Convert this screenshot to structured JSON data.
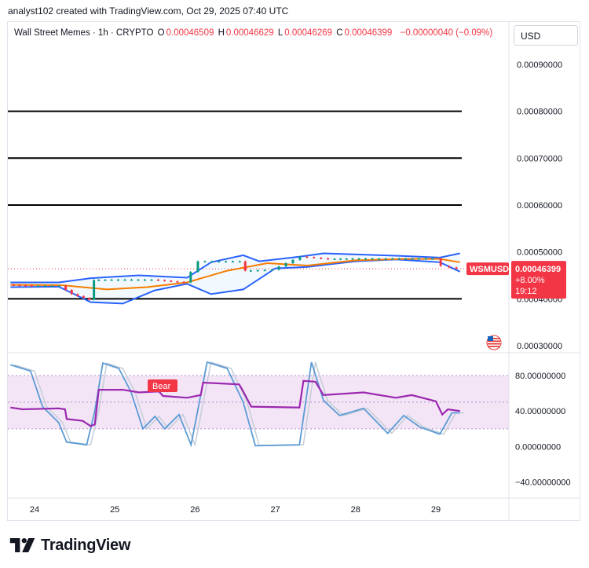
{
  "header": {
    "attribution": "analyst102 created with TradingView.com, Oct 29, 2025 07:40 UTC"
  },
  "legend": {
    "symbol": "Wall Street Memes · 1h · CRYPTO",
    "open_label": "O",
    "open": "0.00046509",
    "high_label": "H",
    "high": "0.00046629",
    "low_label": "L",
    "low": "0.00046269",
    "close_label": "C",
    "close": "0.00046399",
    "change": "−0.00000040 (−0.09%)"
  },
  "currency_button": "USD",
  "price_axis": {
    "ticks": [
      "0.00090000",
      "0.00080000",
      "0.00070000",
      "0.00060000",
      "0.00050000",
      "0.00030000"
    ],
    "partial_tick": "0.00040000"
  },
  "badges": {
    "symbol": "WSMUSD",
    "price": "0.00046399",
    "change": "+8.00%",
    "countdown": "19:12",
    "bear": "Bear"
  },
  "oscillator_axis": {
    "ticks": [
      "80.00000000",
      "40.00000000",
      "0.00000000",
      "−40.00000000"
    ]
  },
  "time_axis": {
    "ticks": [
      "24",
      "25",
      "26",
      "27",
      "28",
      "29"
    ]
  },
  "footer": {
    "brand": "TradingView"
  },
  "colors": {
    "bollinger": "#2962ff",
    "basis": "#f57c00",
    "up": "#089981",
    "down": "#f23645",
    "stoch_k": "#5b9bd5",
    "rsi": "#9c27b0",
    "band_fill": "#f3e5f5"
  },
  "chart_data": [
    {
      "type": "candlestick",
      "symbol": "WSMUSD",
      "timeframe": "1h",
      "y_range": [
        0.00027,
        0.00094
      ],
      "horizontal_levels": [
        0.0008,
        0.0007,
        0.0006,
        0.0004
      ],
      "last_price": 0.00046399,
      "x_labels": [
        "24",
        "25",
        "26",
        "27",
        "28",
        "29"
      ],
      "close_series": [
        {
          "x": 23.7,
          "y": 0.00043
        },
        {
          "x": 24.0,
          "y": 0.000428
        },
        {
          "x": 24.35,
          "y": 0.000428
        },
        {
          "x": 24.5,
          "y": 0.00041
        },
        {
          "x": 24.72,
          "y": 0.000398
        },
        {
          "x": 24.76,
          "y": 0.00044
        },
        {
          "x": 25.0,
          "y": 0.000441
        },
        {
          "x": 25.5,
          "y": 0.000441
        },
        {
          "x": 25.9,
          "y": 0.000435
        },
        {
          "x": 26.08,
          "y": 0.00048
        },
        {
          "x": 26.6,
          "y": 0.00048
        },
        {
          "x": 26.65,
          "y": 0.00046
        },
        {
          "x": 27.0,
          "y": 0.000462
        },
        {
          "x": 27.35,
          "y": 0.00049
        },
        {
          "x": 27.7,
          "y": 0.000485
        },
        {
          "x": 28.0,
          "y": 0.000486
        },
        {
          "x": 28.5,
          "y": 0.000486
        },
        {
          "x": 29.0,
          "y": 0.000486
        },
        {
          "x": 29.12,
          "y": 0.00047
        },
        {
          "x": 29.3,
          "y": 0.000464
        }
      ],
      "bollinger_upper": [
        {
          "x": 23.7,
          "y": 0.000435
        },
        {
          "x": 24.3,
          "y": 0.000435
        },
        {
          "x": 24.7,
          "y": 0.000444
        },
        {
          "x": 25.3,
          "y": 0.00045
        },
        {
          "x": 25.9,
          "y": 0.000445
        },
        {
          "x": 26.2,
          "y": 0.000478
        },
        {
          "x": 26.6,
          "y": 0.000493
        },
        {
          "x": 26.8,
          "y": 0.00048
        },
        {
          "x": 27.3,
          "y": 0.00049
        },
        {
          "x": 27.6,
          "y": 0.000497
        },
        {
          "x": 28.5,
          "y": 0.000492
        },
        {
          "x": 29.05,
          "y": 0.000488
        },
        {
          "x": 29.3,
          "y": 0.000497
        }
      ],
      "bollinger_basis": [
        {
          "x": 23.7,
          "y": 0.00043
        },
        {
          "x": 24.35,
          "y": 0.000429
        },
        {
          "x": 24.9,
          "y": 0.00042
        },
        {
          "x": 25.4,
          "y": 0.000425
        },
        {
          "x": 25.9,
          "y": 0.000435
        },
        {
          "x": 26.4,
          "y": 0.00046
        },
        {
          "x": 26.9,
          "y": 0.000476
        },
        {
          "x": 27.4,
          "y": 0.000471
        },
        {
          "x": 28.0,
          "y": 0.000482
        },
        {
          "x": 28.6,
          "y": 0.000485
        },
        {
          "x": 29.05,
          "y": 0.000485
        },
        {
          "x": 29.3,
          "y": 0.000478
        }
      ],
      "bollinger_lower": [
        {
          "x": 23.7,
          "y": 0.000425
        },
        {
          "x": 24.3,
          "y": 0.000426
        },
        {
          "x": 24.7,
          "y": 0.000393
        },
        {
          "x": 25.1,
          "y": 0.00039
        },
        {
          "x": 25.5,
          "y": 0.000418
        },
        {
          "x": 25.9,
          "y": 0.000432
        },
        {
          "x": 26.2,
          "y": 0.00041
        },
        {
          "x": 26.6,
          "y": 0.00042
        },
        {
          "x": 27.0,
          "y": 0.000465
        },
        {
          "x": 27.4,
          "y": 0.000468
        },
        {
          "x": 28.0,
          "y": 0.00048
        },
        {
          "x": 28.5,
          "y": 0.000484
        },
        {
          "x": 29.05,
          "y": 0.000478
        },
        {
          "x": 29.3,
          "y": 0.000458
        }
      ]
    },
    {
      "type": "line",
      "name": "oscillator",
      "y_range": [
        -58,
        103
      ],
      "band": [
        20,
        80
      ],
      "midline": 50,
      "x_labels": [
        "24",
        "25",
        "26",
        "27",
        "28",
        "29"
      ],
      "series": [
        {
          "name": "rsi",
          "values": [
            {
              "x": 23.7,
              "y": 44
            },
            {
              "x": 23.85,
              "y": 42
            },
            {
              "x": 24.3,
              "y": 43
            },
            {
              "x": 24.38,
              "y": 42
            },
            {
              "x": 24.4,
              "y": 31
            },
            {
              "x": 24.6,
              "y": 29
            },
            {
              "x": 24.7,
              "y": 23
            },
            {
              "x": 24.75,
              "y": 25
            },
            {
              "x": 24.8,
              "y": 64
            },
            {
              "x": 25.1,
              "y": 64
            },
            {
              "x": 25.3,
              "y": 61
            },
            {
              "x": 25.55,
              "y": 62
            },
            {
              "x": 25.6,
              "y": 57
            },
            {
              "x": 25.9,
              "y": 55
            },
            {
              "x": 26.07,
              "y": 58
            },
            {
              "x": 26.1,
              "y": 72
            },
            {
              "x": 26.55,
              "y": 70
            },
            {
              "x": 26.6,
              "y": 62
            },
            {
              "x": 26.7,
              "y": 45
            },
            {
              "x": 27.3,
              "y": 44
            },
            {
              "x": 27.35,
              "y": 74
            },
            {
              "x": 27.5,
              "y": 73
            },
            {
              "x": 27.6,
              "y": 58
            },
            {
              "x": 28.1,
              "y": 61
            },
            {
              "x": 28.5,
              "y": 55
            },
            {
              "x": 28.7,
              "y": 58
            },
            {
              "x": 29.0,
              "y": 51
            },
            {
              "x": 29.08,
              "y": 36
            },
            {
              "x": 29.15,
              "y": 42
            },
            {
              "x": 29.3,
              "y": 40
            }
          ]
        },
        {
          "name": "stochastic",
          "values": [
            {
              "x": 23.7,
              "y": 92
            },
            {
              "x": 23.95,
              "y": 85
            },
            {
              "x": 24.1,
              "y": 45
            },
            {
              "x": 24.3,
              "y": 27
            },
            {
              "x": 24.4,
              "y": 5
            },
            {
              "x": 24.65,
              "y": 2
            },
            {
              "x": 24.75,
              "y": 40
            },
            {
              "x": 24.85,
              "y": 94
            },
            {
              "x": 25.05,
              "y": 88
            },
            {
              "x": 25.2,
              "y": 62
            },
            {
              "x": 25.35,
              "y": 20
            },
            {
              "x": 25.5,
              "y": 34
            },
            {
              "x": 25.62,
              "y": 20
            },
            {
              "x": 25.8,
              "y": 36
            },
            {
              "x": 25.95,
              "y": 2
            },
            {
              "x": 26.15,
              "y": 95
            },
            {
              "x": 26.4,
              "y": 88
            },
            {
              "x": 26.6,
              "y": 50
            },
            {
              "x": 26.75,
              "y": 1
            },
            {
              "x": 27.3,
              "y": 2
            },
            {
              "x": 27.45,
              "y": 95
            },
            {
              "x": 27.6,
              "y": 52
            },
            {
              "x": 27.8,
              "y": 35
            },
            {
              "x": 28.1,
              "y": 43
            },
            {
              "x": 28.4,
              "y": 15
            },
            {
              "x": 28.6,
              "y": 35
            },
            {
              "x": 28.8,
              "y": 22
            },
            {
              "x": 29.05,
              "y": 14
            },
            {
              "x": 29.2,
              "y": 38
            },
            {
              "x": 29.3,
              "y": 38
            }
          ]
        }
      ]
    }
  ]
}
